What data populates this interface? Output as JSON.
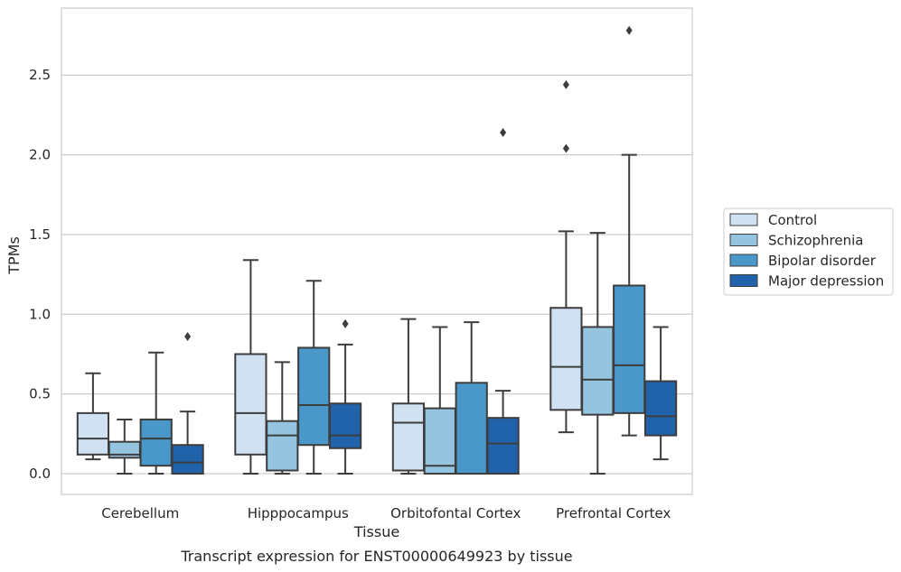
{
  "caption": "Transcript expression for ENST00000649923 by tissue",
  "chart_data": {
    "type": "box",
    "xlabel": "Tissue",
    "ylabel": "TPMs",
    "ylim": [
      -0.13,
      2.92
    ],
    "yticks": [
      0.0,
      0.5,
      1.0,
      1.5,
      2.0,
      2.5
    ],
    "ytick_labels": [
      "0.0",
      "0.5",
      "1.0",
      "1.5",
      "2.0",
      "2.5"
    ],
    "grid": "horizontal",
    "legend_position": "right",
    "categories": [
      "Cerebellum",
      "Hipppocampus",
      "Orbitofontal Cortex",
      "Prefrontal Cortex"
    ],
    "series": [
      {
        "name": "Control",
        "color": "#d0e1f2",
        "boxes": [
          {
            "whislo": 0.09,
            "q1": 0.12,
            "med": 0.22,
            "q3": 0.38,
            "whishi": 0.63,
            "fliers": []
          },
          {
            "whislo": 0.0,
            "q1": 0.12,
            "med": 0.38,
            "q3": 0.75,
            "whishi": 1.34,
            "fliers": []
          },
          {
            "whislo": 0.0,
            "q1": 0.02,
            "med": 0.32,
            "q3": 0.44,
            "whishi": 0.97,
            "fliers": []
          },
          {
            "whislo": 0.26,
            "q1": 0.4,
            "med": 0.67,
            "q3": 1.04,
            "whishi": 1.52,
            "fliers": [
              2.04,
              2.44
            ]
          }
        ]
      },
      {
        "name": "Schizophrenia",
        "color": "#94c4df",
        "boxes": [
          {
            "whislo": 0.0,
            "q1": 0.1,
            "med": 0.12,
            "q3": 0.2,
            "whishi": 0.34,
            "fliers": []
          },
          {
            "whislo": 0.0,
            "q1": 0.02,
            "med": 0.24,
            "q3": 0.33,
            "whishi": 0.7,
            "fliers": []
          },
          {
            "whislo": 0.0,
            "q1": 0.0,
            "med": 0.05,
            "q3": 0.41,
            "whishi": 0.92,
            "fliers": []
          },
          {
            "whislo": 0.0,
            "q1": 0.37,
            "med": 0.59,
            "q3": 0.92,
            "whishi": 1.51,
            "fliers": []
          }
        ]
      },
      {
        "name": "Bipolar disorder",
        "color": "#4a98c9",
        "boxes": [
          {
            "whislo": 0.0,
            "q1": 0.05,
            "med": 0.22,
            "q3": 0.34,
            "whishi": 0.76,
            "fliers": []
          },
          {
            "whislo": 0.0,
            "q1": 0.18,
            "med": 0.43,
            "q3": 0.79,
            "whishi": 1.21,
            "fliers": []
          },
          {
            "whislo": 0.0,
            "q1": 0.0,
            "med": 0.0,
            "q3": 0.57,
            "whishi": 0.95,
            "fliers": []
          },
          {
            "whislo": 0.24,
            "q1": 0.38,
            "med": 0.68,
            "q3": 1.18,
            "whishi": 2.0,
            "fliers": [
              2.78
            ]
          }
        ]
      },
      {
        "name": "Major depression",
        "color": "#2163aa",
        "boxes": [
          {
            "whislo": 0.0,
            "q1": 0.0,
            "med": 0.07,
            "q3": 0.18,
            "whishi": 0.39,
            "fliers": [
              0.86
            ]
          },
          {
            "whislo": 0.0,
            "q1": 0.16,
            "med": 0.24,
            "q3": 0.44,
            "whishi": 0.81,
            "fliers": [
              0.94
            ]
          },
          {
            "whislo": 0.0,
            "q1": 0.0,
            "med": 0.19,
            "q3": 0.35,
            "whishi": 0.52,
            "fliers": [
              2.14
            ]
          },
          {
            "whislo": 0.09,
            "q1": 0.24,
            "med": 0.36,
            "q3": 0.58,
            "whishi": 0.92,
            "fliers": []
          }
        ]
      }
    ]
  }
}
